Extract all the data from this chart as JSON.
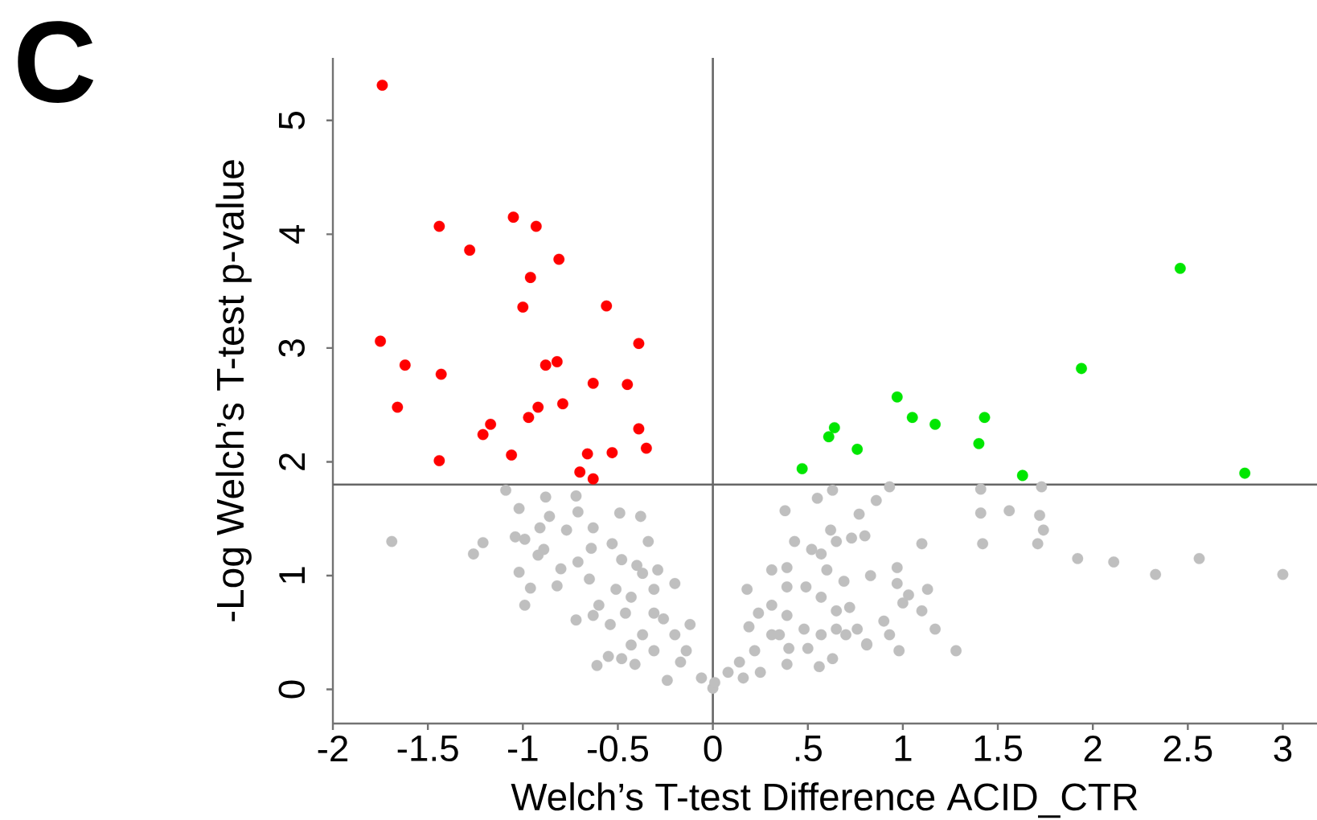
{
  "chart_data": {
    "type": "scatter",
    "xlabel": "Welch’s T-test Difference ACID_CTR",
    "ylabel": "-Log Welch’s T-test p-value",
    "annotations": [
      "C"
    ],
    "marker": "circle",
    "xlim": [
      -2.0,
      3.18
    ],
    "ylim": [
      -0.3,
      5.55
    ],
    "xticks": [
      -2,
      -1.5,
      -1,
      -0.5,
      0,
      {
        "value": 0.5,
        "label": ".5"
      },
      1,
      1.5,
      2,
      2.5,
      3
    ],
    "yticks": [
      0,
      1,
      2,
      3,
      4,
      5
    ],
    "ref_lines": [
      {
        "axis": "y",
        "value": 1.8,
        "color": "#666666"
      },
      {
        "axis": "x",
        "value": 0,
        "color": "#666666"
      }
    ],
    "series": [
      {
        "color": "#bfbfbf",
        "x": [
          -1.69,
          -1.09,
          -0.88,
          -1.02,
          -0.86,
          -0.72,
          -0.71,
          -0.63,
          -0.77,
          -0.91,
          -0.49,
          -0.38,
          -1.21,
          -1.26,
          -1.04,
          -0.99,
          -0.89,
          -0.92,
          -0.53,
          -0.34,
          -0.64,
          -0.71,
          -1.02,
          -0.8,
          -0.96,
          -0.82,
          -0.65,
          -0.48,
          -0.4,
          -0.29,
          -0.2,
          -0.99,
          -0.72,
          -0.6,
          -0.63,
          -0.51,
          -0.43,
          -0.31,
          -0.54,
          -0.46,
          -0.37,
          -0.26,
          -0.2,
          -0.12,
          -0.61,
          -0.55,
          -0.48,
          -0.41,
          -0.31,
          -0.24,
          -0.17,
          -0.06,
          0.0,
          -0.37,
          -0.43,
          -0.31,
          -0.14,
          0.01,
          0.08,
          0.16,
          0.25,
          0.14,
          0.22,
          0.19,
          0.31,
          0.39,
          0.56,
          0.63,
          0.18,
          0.24,
          0.31,
          0.39,
          0.35,
          0.48,
          0.4,
          0.5,
          0.57,
          0.65,
          0.7,
          0.76,
          0.81,
          0.31,
          0.39,
          0.43,
          0.38,
          0.55,
          0.63,
          0.52,
          0.57,
          0.62,
          0.65,
          0.39,
          0.49,
          0.57,
          0.65,
          0.72,
          0.6,
          0.69,
          0.73,
          0.8,
          0.77,
          0.86,
          0.93,
          0.83,
          0.97,
          0.97,
          1.0,
          1.1,
          1.03,
          0.9,
          0.93,
          0.98,
          0.81,
          1.13,
          1.17,
          1.28,
          1.1,
          1.41,
          1.41,
          1.56,
          1.42,
          1.72,
          1.74,
          1.71,
          1.73,
          1.92,
          2.11,
          2.33,
          2.56,
          3.0
        ],
        "values": [
          1.3,
          1.75,
          1.69,
          1.59,
          1.52,
          1.7,
          1.56,
          1.42,
          1.4,
          1.42,
          1.55,
          1.52,
          1.29,
          1.19,
          1.34,
          1.32,
          1.23,
          1.18,
          1.28,
          1.3,
          1.24,
          1.12,
          1.03,
          1.06,
          0.89,
          0.91,
          0.97,
          1.14,
          1.09,
          1.05,
          0.93,
          0.74,
          0.61,
          0.74,
          0.65,
          0.88,
          0.81,
          0.88,
          0.57,
          0.67,
          0.48,
          0.62,
          0.48,
          0.57,
          0.21,
          0.29,
          0.27,
          0.22,
          0.34,
          0.08,
          0.24,
          0.1,
          0.01,
          1.02,
          0.39,
          0.67,
          0.34,
          0.06,
          0.15,
          0.1,
          0.15,
          0.24,
          0.34,
          0.55,
          0.48,
          0.22,
          0.2,
          0.27,
          0.88,
          0.67,
          0.74,
          0.65,
          0.48,
          0.53,
          0.36,
          0.36,
          0.48,
          0.53,
          0.48,
          0.53,
          0.39,
          1.05,
          1.07,
          1.3,
          1.57,
          1.68,
          1.75,
          1.23,
          1.19,
          1.4,
          1.3,
          0.9,
          0.9,
          0.81,
          0.69,
          0.72,
          1.05,
          0.95,
          1.33,
          1.35,
          1.54,
          1.66,
          1.78,
          1.0,
          1.07,
          0.93,
          0.76,
          0.69,
          0.83,
          0.6,
          0.48,
          0.34,
          0.4,
          0.88,
          0.53,
          0.34,
          1.28,
          1.76,
          1.55,
          1.57,
          1.28,
          1.53,
          1.4,
          1.28,
          1.78,
          1.15,
          1.12,
          1.01,
          1.15,
          1.01
        ]
      },
      {
        "color": "#ff0000",
        "x": [
          -1.74,
          -1.44,
          -1.05,
          -0.93,
          -1.28,
          -0.81,
          -0.96,
          -1.0,
          -0.56,
          -1.75,
          -0.39,
          -1.62,
          -0.88,
          -0.82,
          -1.43,
          -0.63,
          -0.45,
          -1.66,
          -0.79,
          -0.92,
          -0.97,
          -1.17,
          -1.21,
          -0.39,
          -0.35,
          -1.44,
          -1.06,
          -0.66,
          -0.53,
          -0.7,
          -0.63
        ],
        "values": [
          5.31,
          4.07,
          4.15,
          4.07,
          3.86,
          3.78,
          3.62,
          3.36,
          3.37,
          3.06,
          3.04,
          2.85,
          2.85,
          2.88,
          2.77,
          2.69,
          2.68,
          2.48,
          2.51,
          2.48,
          2.39,
          2.33,
          2.24,
          2.29,
          2.12,
          2.01,
          2.06,
          2.07,
          2.08,
          1.91,
          1.85
        ]
      },
      {
        "color": "#00e600",
        "x": [
          2.46,
          1.94,
          0.97,
          1.05,
          1.17,
          1.43,
          0.64,
          0.61,
          0.76,
          1.4,
          0.47,
          1.63,
          2.8
        ],
        "values": [
          3.7,
          2.82,
          2.57,
          2.39,
          2.33,
          2.39,
          2.3,
          2.22,
          2.11,
          2.16,
          1.94,
          1.88,
          1.9
        ]
      }
    ]
  }
}
